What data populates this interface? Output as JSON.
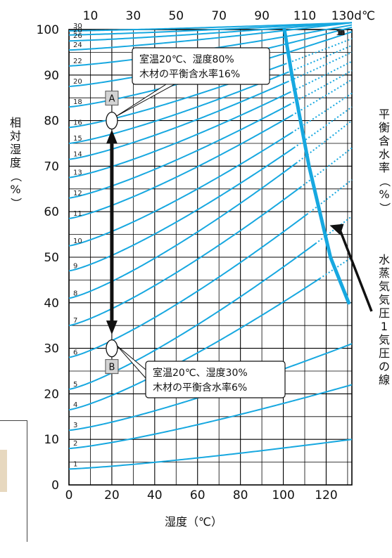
{
  "chart_data": {
    "type": "line",
    "xlabel": "湿度（℃）",
    "ylabel": "相対湿度（%）",
    "right_label": "平衡含水率（%）",
    "xlim": [
      0,
      132
    ],
    "ylim": [
      0,
      100
    ],
    "x_ticks": [
      "0",
      "20",
      "40",
      "60",
      "80",
      "100",
      "120"
    ],
    "y_ticks": [
      "0",
      "10",
      "20",
      "30",
      "40",
      "50",
      "60",
      "70",
      "80",
      "90",
      "100"
    ],
    "top_ticks": [
      "10",
      "30",
      "50",
      "70",
      "90",
      "110",
      "130d℃"
    ],
    "top_tick_values": [
      10,
      30,
      50,
      70,
      90,
      110,
      130
    ],
    "grid": true,
    "curve_color": "#17a8e0",
    "series": [
      {
        "name": "1",
        "left_rh": 3.5,
        "right_rh": 10,
        "dot_from": null
      },
      {
        "name": "2",
        "left_rh": 8,
        "right_rh": 22,
        "dot_from": null
      },
      {
        "name": "3",
        "left_rh": 12,
        "right_rh": 31,
        "dot_from": null
      },
      {
        "name": "4",
        "left_rh": 16.5,
        "right_rh": 50,
        "dot_from": 117
      },
      {
        "name": "5",
        "left_rh": 21,
        "right_rh": 59,
        "dot_from": 115
      },
      {
        "name": "6",
        "left_rh": 28,
        "right_rh": 67,
        "dot_from": 111
      },
      {
        "name": "7",
        "left_rh": 35,
        "right_rh": 74,
        "dot_from": 108
      },
      {
        "name": "8",
        "left_rh": 41,
        "right_rh": 80,
        "dot_from": 106
      },
      {
        "name": "9",
        "left_rh": 47,
        "right_rh": 83,
        "dot_from": 105
      },
      {
        "name": "10",
        "left_rh": 52.5,
        "right_rh": 86,
        "dot_from": 104
      },
      {
        "name": "11",
        "left_rh": 58.5,
        "right_rh": 89,
        "dot_from": 104
      },
      {
        "name": "12",
        "left_rh": 63,
        "right_rh": 91,
        "dot_from": 103
      },
      {
        "name": "13",
        "left_rh": 67.5,
        "right_rh": 93,
        "dot_from": 103
      },
      {
        "name": "14",
        "left_rh": 71.5,
        "right_rh": 95,
        "dot_from": 102
      },
      {
        "name": "15",
        "left_rh": 75,
        "right_rh": 96.5,
        "dot_from": 102
      },
      {
        "name": "16",
        "left_rh": 78.5,
        "right_rh": 98,
        "dot_from": 101
      },
      {
        "name": "18",
        "left_rh": 83,
        "right_rh": 99.5,
        "dot_from": null
      },
      {
        "name": "20",
        "left_rh": 87.5,
        "right_rh": 100.5,
        "dot_from": null
      },
      {
        "name": "22",
        "left_rh": 92,
        "right_rh": 101,
        "dot_from": null
      },
      {
        "name": "24",
        "left_rh": 95.5,
        "right_rh": 101.5,
        "dot_from": null
      },
      {
        "name": "26",
        "left_rh": 97.5,
        "right_rh": 101.5,
        "dot_from": null
      },
      {
        "name": "28",
        "left_rh": 98.8,
        "right_rh": 101.5,
        "dot_from": null
      },
      {
        "name": "30",
        "left_rh": 99.7,
        "right_rh": 101.5,
        "dot_from": null
      }
    ],
    "vapor_line": {
      "label": "水蒸気気圧1気圧の線",
      "points": [
        [
          100.5,
          100
        ],
        [
          104,
          90
        ],
        [
          108,
          80
        ],
        [
          112,
          70
        ],
        [
          117,
          60
        ],
        [
          122,
          50
        ],
        [
          130.5,
          40
        ]
      ]
    },
    "arrow": {
      "x": 20,
      "from_rh": 33,
      "to_rh": 78
    },
    "points": [
      {
        "marker": "A",
        "x": 20,
        "rh": 80,
        "callout": [
          "室温20℃、湿度80%",
          "木材の平衡含水率16%"
        ]
      },
      {
        "marker": "B",
        "x": 20,
        "rh": 30,
        "callout": [
          "室温20℃、湿度30%",
          "木材の平衡含水率6%"
        ]
      }
    ]
  }
}
